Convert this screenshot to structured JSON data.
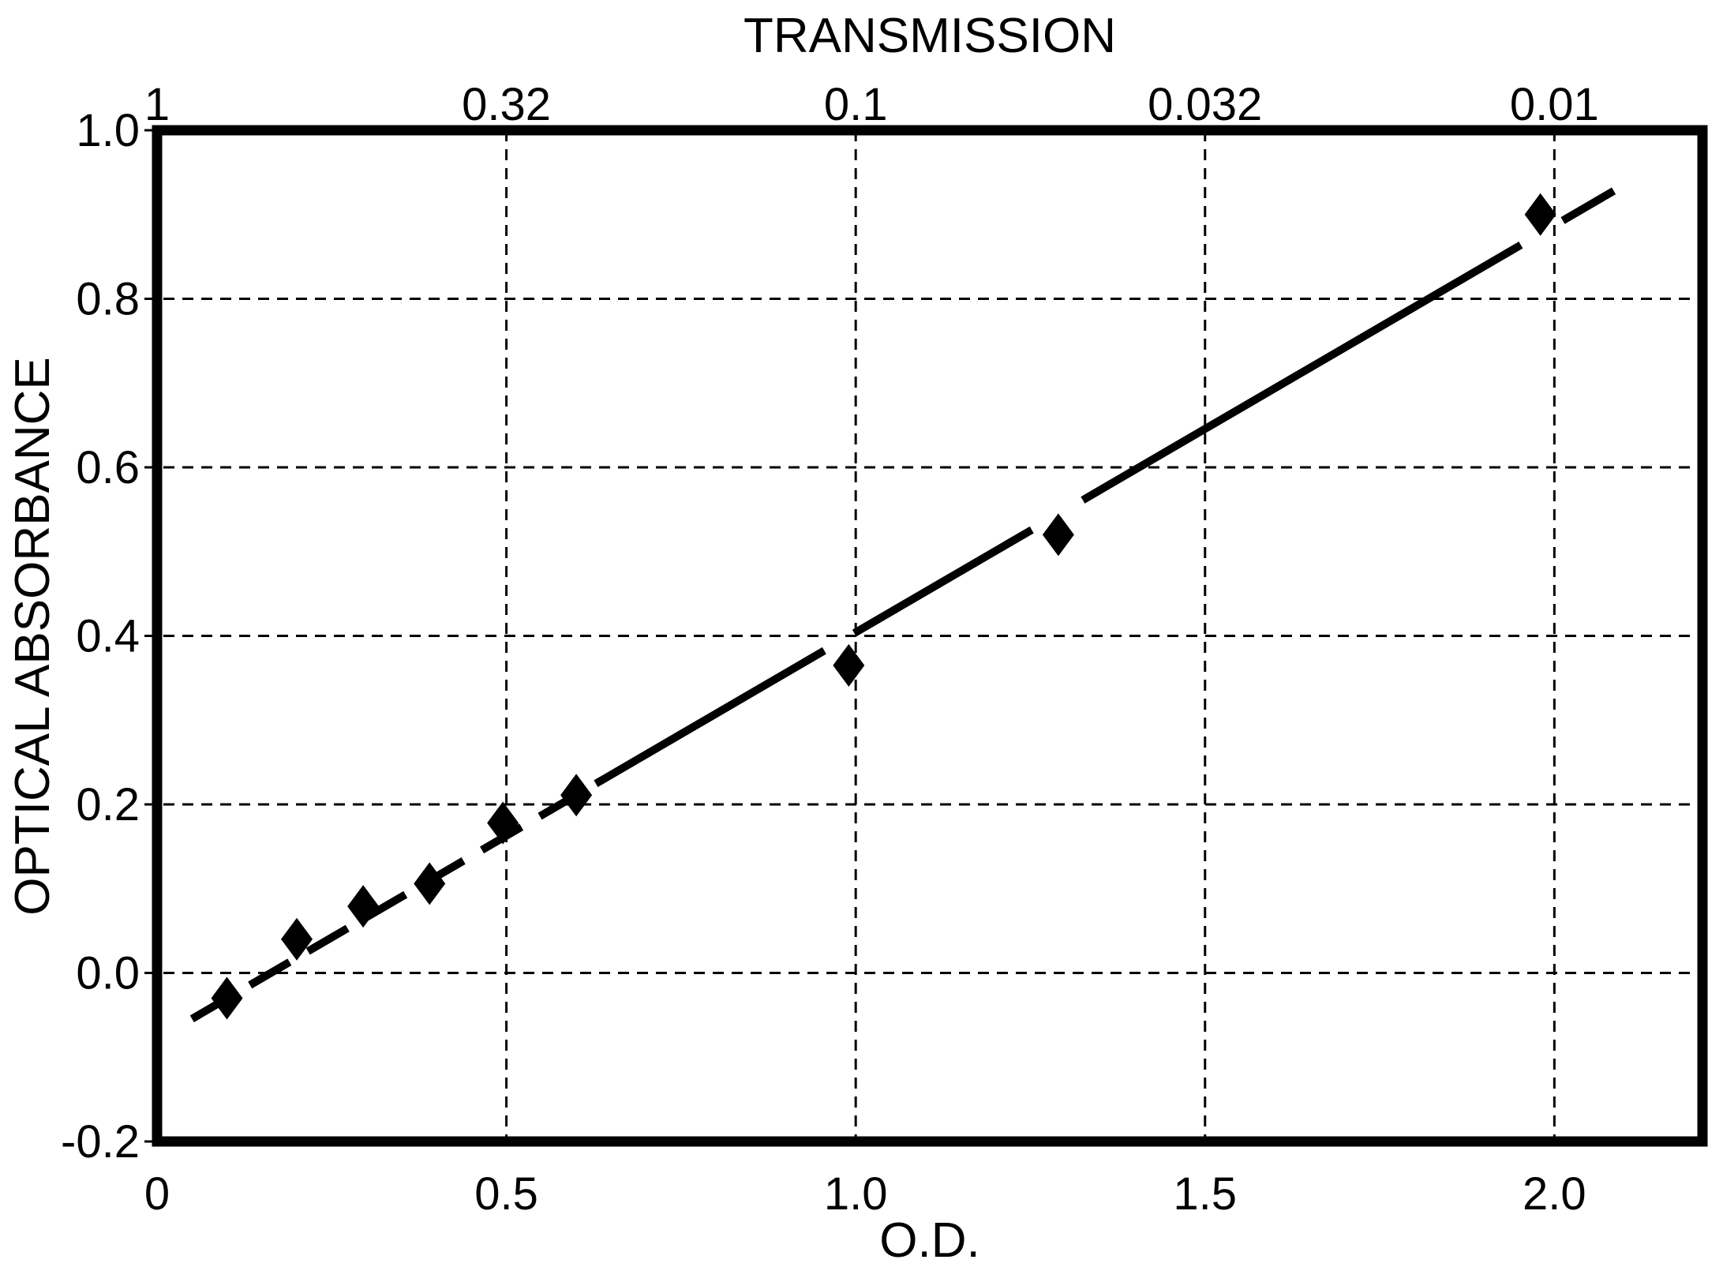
{
  "chart_data": {
    "type": "scatter",
    "title": "",
    "top_axis": {
      "title": "TRANSMISSION",
      "ticks": [
        {
          "x": 0.0,
          "label": "1"
        },
        {
          "x": 0.5,
          "label": "0.32"
        },
        {
          "x": 1.0,
          "label": "0.1"
        },
        {
          "x": 1.5,
          "label": "0.032"
        },
        {
          "x": 2.0,
          "label": "0.01"
        }
      ]
    },
    "x_axis": {
      "title": "O.D.",
      "ticks": [
        {
          "x": 0.0,
          "label": "0"
        },
        {
          "x": 0.5,
          "label": "0.5"
        },
        {
          "x": 1.0,
          "label": "1.0"
        },
        {
          "x": 1.5,
          "label": "1.5"
        },
        {
          "x": 2.0,
          "label": "2.0"
        }
      ]
    },
    "y_axis": {
      "title": "OPTICAL ABSORBANCE",
      "ticks": [
        {
          "y": 1.0,
          "label": "1.0"
        },
        {
          "y": 0.8,
          "label": "0.8"
        },
        {
          "y": 0.6,
          "label": "0.6"
        },
        {
          "y": 0.4,
          "label": "0.4"
        },
        {
          "y": 0.2,
          "label": "0.2"
        },
        {
          "y": 0.0,
          "label": "0.0"
        },
        {
          "y": -0.2,
          "label": "-0.2"
        }
      ]
    },
    "xlim": [
      0,
      2.212
    ],
    "ylim": [
      -0.2,
      1.0
    ],
    "grid": true,
    "x_gridlines": [
      0.5,
      1.0,
      1.5,
      2.0
    ],
    "y_gridlines": [
      0.0,
      0.2,
      0.4,
      0.6,
      0.8
    ],
    "y_edge_ticks": [
      1.0,
      -0.2
    ],
    "points": [
      [
        0.1,
        -0.03
      ],
      [
        0.2,
        0.04
      ],
      [
        0.295,
        0.079
      ],
      [
        0.39,
        0.106
      ],
      [
        0.495,
        0.178
      ],
      [
        0.6,
        0.211
      ],
      [
        0.99,
        0.365
      ],
      [
        1.29,
        0.52
      ],
      [
        1.98,
        0.9
      ]
    ],
    "marker": "diamond",
    "trendline": {
      "slope": 0.4828,
      "intercept": -0.0786,
      "segments": [
        {
          "from": 0.05,
          "to": 0.585,
          "style": "dashed"
        },
        {
          "from": 0.628,
          "to": 0.955,
          "style": "solid"
        },
        {
          "from": 0.998,
          "to": 1.252,
          "style": "solid"
        },
        {
          "from": 1.325,
          "to": 1.952,
          "style": "solid"
        },
        {
          "from": 2.012,
          "to": 2.085,
          "style": "solid"
        }
      ]
    },
    "colors": {
      "foreground": "#000000",
      "background": "#ffffff"
    },
    "legend": null
  }
}
